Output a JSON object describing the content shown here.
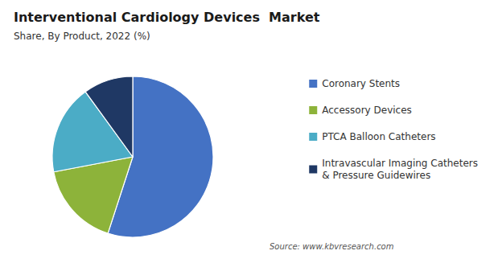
{
  "chart_data": {
    "type": "pie",
    "title": "Interventional Cardiology Devices  Market",
    "subtitle": "Share, By Product, 2022 (%)",
    "source": "Source: www.kbvresearch.com",
    "categories": [
      "Coronary Stents",
      "Accessory Devices",
      "PTCA Balloon Catheters",
      "Intravascular Imaging Catheters\n& Pressure Guidewires"
    ],
    "values": [
      55,
      17,
      18,
      10
    ],
    "colors": [
      "#4472C4",
      "#8DB33A",
      "#4BACC6",
      "#1F3864"
    ],
    "legend": "right"
  }
}
